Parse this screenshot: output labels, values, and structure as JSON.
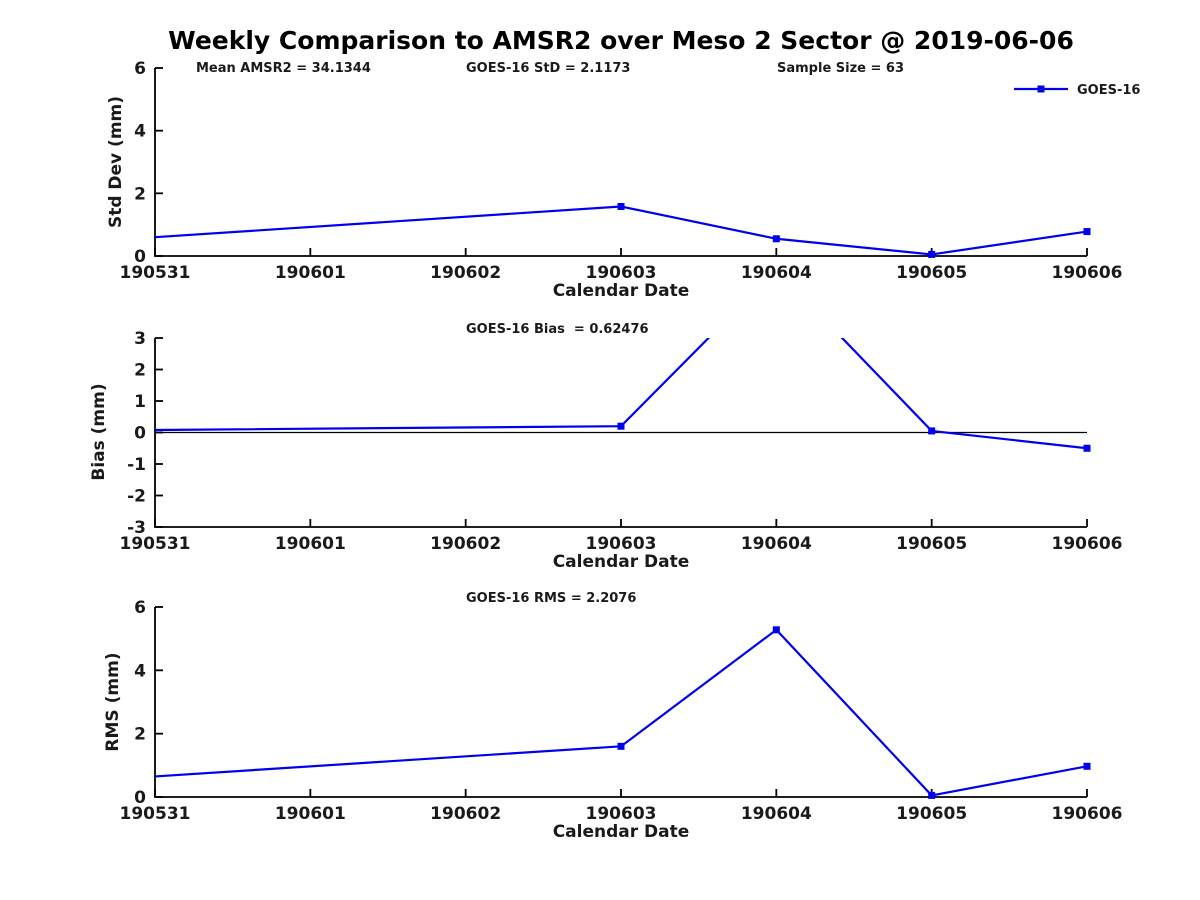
{
  "figure": {
    "title": "Weekly Comparison to AMSR2 over Meso 2 Sector @ 2019-06-06",
    "background_color": "#FFFFFF",
    "axis_color": "#000000",
    "legend": {
      "label": "GOES-16",
      "line_color": "#0000EE",
      "marker": "filled-square",
      "position": "top-right",
      "border": false
    }
  },
  "chart_data": [
    {
      "id": "std-dev",
      "type": "line",
      "xlabel": "Calendar Date",
      "ylabel": "Std Dev (mm)",
      "x_tick_labels": [
        "190531",
        "190601",
        "190602",
        "190603",
        "190604",
        "190605",
        "190606"
      ],
      "ylim": [
        0,
        6
      ],
      "yticks": [
        0,
        2,
        4,
        6
      ],
      "grid": false,
      "zero_line": false,
      "annotations": [
        "Mean AMSR2 = 34.1344",
        "GOES-16 StD = 2.1173",
        "Sample Size = 63"
      ],
      "series": [
        {
          "name": "GOES-16",
          "color": "#0000EE",
          "x": [
            0,
            3,
            4,
            5,
            6
          ],
          "x_dates": [
            "190531",
            "190603",
            "190604",
            "190605",
            "190606"
          ],
          "y": [
            0.6,
            1.58,
            0.55,
            0.05,
            0.78
          ],
          "marker_visible": [
            false,
            true,
            true,
            true,
            true
          ]
        }
      ]
    },
    {
      "id": "bias",
      "type": "line",
      "xlabel": "Calendar Date",
      "ylabel": "Bias (mm)",
      "x_tick_labels": [
        "190531",
        "190601",
        "190602",
        "190603",
        "190604",
        "190605",
        "190606"
      ],
      "ylim": [
        -3,
        3
      ],
      "yticks": [
        3,
        2,
        1,
        0,
        -1,
        -2,
        -3
      ],
      "grid": false,
      "zero_line": true,
      "annotations": [
        "GOES-16 Bias  = 0.62476"
      ],
      "series": [
        {
          "name": "GOES-16",
          "color": "#0000EE",
          "x": [
            0,
            3,
            4,
            5,
            6
          ],
          "x_dates": [
            "190531",
            "190603",
            "190604",
            "190605",
            "190606"
          ],
          "y": [
            0.08,
            0.2,
            5.17,
            0.05,
            -0.5
          ],
          "off_scale_note": "value at 190604 exceeds ylim and the line is clipped at y=3",
          "marker_visible": [
            false,
            true,
            false,
            true,
            true
          ]
        }
      ]
    },
    {
      "id": "rms",
      "type": "line",
      "xlabel": "Calendar Date",
      "ylabel": "RMS (mm)",
      "x_tick_labels": [
        "190531",
        "190601",
        "190602",
        "190603",
        "190604",
        "190605",
        "190606"
      ],
      "ylim": [
        0,
        6
      ],
      "yticks": [
        0,
        2,
        4,
        6
      ],
      "grid": false,
      "zero_line": false,
      "annotations": [
        "GOES-16 RMS = 2.2076"
      ],
      "series": [
        {
          "name": "GOES-16",
          "color": "#0000EE",
          "x": [
            0,
            3,
            4,
            5,
            6
          ],
          "x_dates": [
            "190531",
            "190603",
            "190604",
            "190605",
            "190606"
          ],
          "y": [
            0.65,
            1.6,
            5.28,
            0.05,
            0.97
          ],
          "marker_visible": [
            false,
            true,
            true,
            true,
            true
          ]
        }
      ]
    }
  ]
}
